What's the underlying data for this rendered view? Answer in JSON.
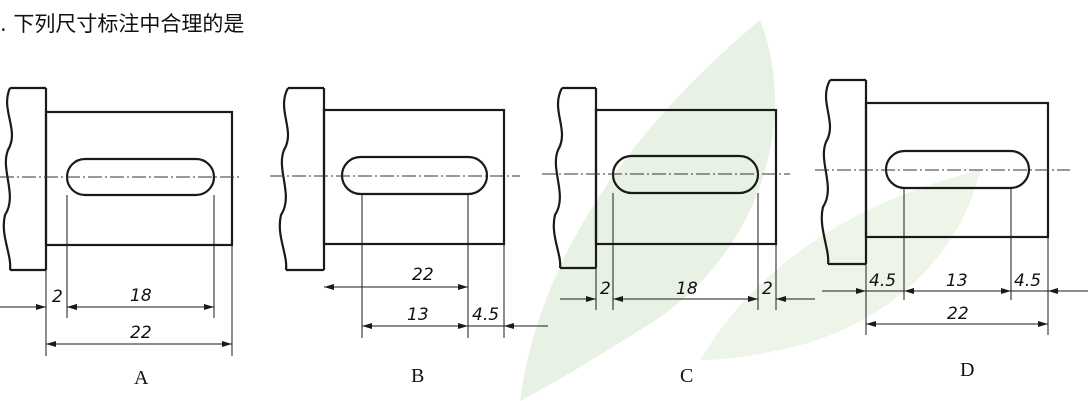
{
  "question": {
    "text": ". 下列尺寸标注中合理的是"
  },
  "options": [
    {
      "label": "A",
      "dims": [
        "2",
        "18",
        "22"
      ]
    },
    {
      "label": "B",
      "dims": [
        "22",
        "13",
        "4.5"
      ]
    },
    {
      "label": "C",
      "dims": [
        "2",
        "18",
        "2"
      ]
    },
    {
      "label": "D",
      "dims": [
        "4.5",
        "13",
        "4.5",
        "22"
      ]
    }
  ],
  "colors": {
    "line": "#1a1a1a",
    "watermark": "#e8f2e4"
  }
}
